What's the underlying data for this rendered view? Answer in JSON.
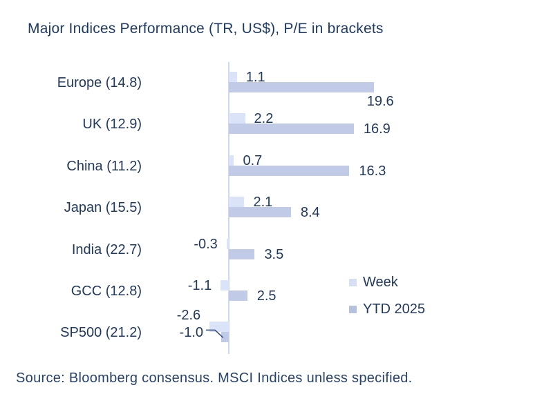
{
  "title": "Major Indices Performance (TR, US$), P/E in brackets",
  "source": "Source: Bloomberg consensus. MSCI Indices unless specified.",
  "colors": {
    "text_navy": "#21395f",
    "week_bar": "#dbe3f8",
    "ytd_bar": "#c1cae6",
    "axis_line": "#cbd9f2",
    "leader_line": "#2f4d7d"
  },
  "legend": {
    "position": "middle-right",
    "items": [
      {
        "label": "Week",
        "color": "#d7dff5"
      },
      {
        "label": "YTD 2025",
        "color": "#b6c0df"
      }
    ]
  },
  "chart_data": {
    "type": "bar",
    "orientation": "horizontal",
    "title": "Major Indices Performance (TR, US$), P/E in brackets",
    "categories": [
      "Europe (14.8)",
      "UK (12.9)",
      "China (11.2)",
      "Japan (15.5)",
      "India (22.7)",
      "GCC (12.8)",
      "SP500 (21.2)"
    ],
    "series": [
      {
        "name": "Week",
        "values": [
          1.1,
          2.2,
          0.7,
          2.1,
          -0.3,
          -1.1,
          -2.6
        ],
        "labels": [
          "1.1",
          "2.2",
          "0.7",
          "2.1",
          "-0.3",
          "-1.1",
          "-2.6"
        ]
      },
      {
        "name": "YTD 2025",
        "values": [
          19.6,
          16.9,
          16.3,
          8.4,
          3.5,
          2.5,
          -1.0
        ],
        "labels": [
          "19.6",
          "16.9",
          "16.3",
          "8.4",
          "3.5",
          "2.5",
          "-1.0"
        ]
      }
    ],
    "xlim": [
      -3,
      20.5
    ],
    "grid": false,
    "zero_axis_line": true,
    "value_labels_shown": true,
    "callout": {
      "category": "SP500 (21.2)",
      "series": "YTD 2025",
      "label": "-1.0",
      "style": "leader-line"
    }
  }
}
